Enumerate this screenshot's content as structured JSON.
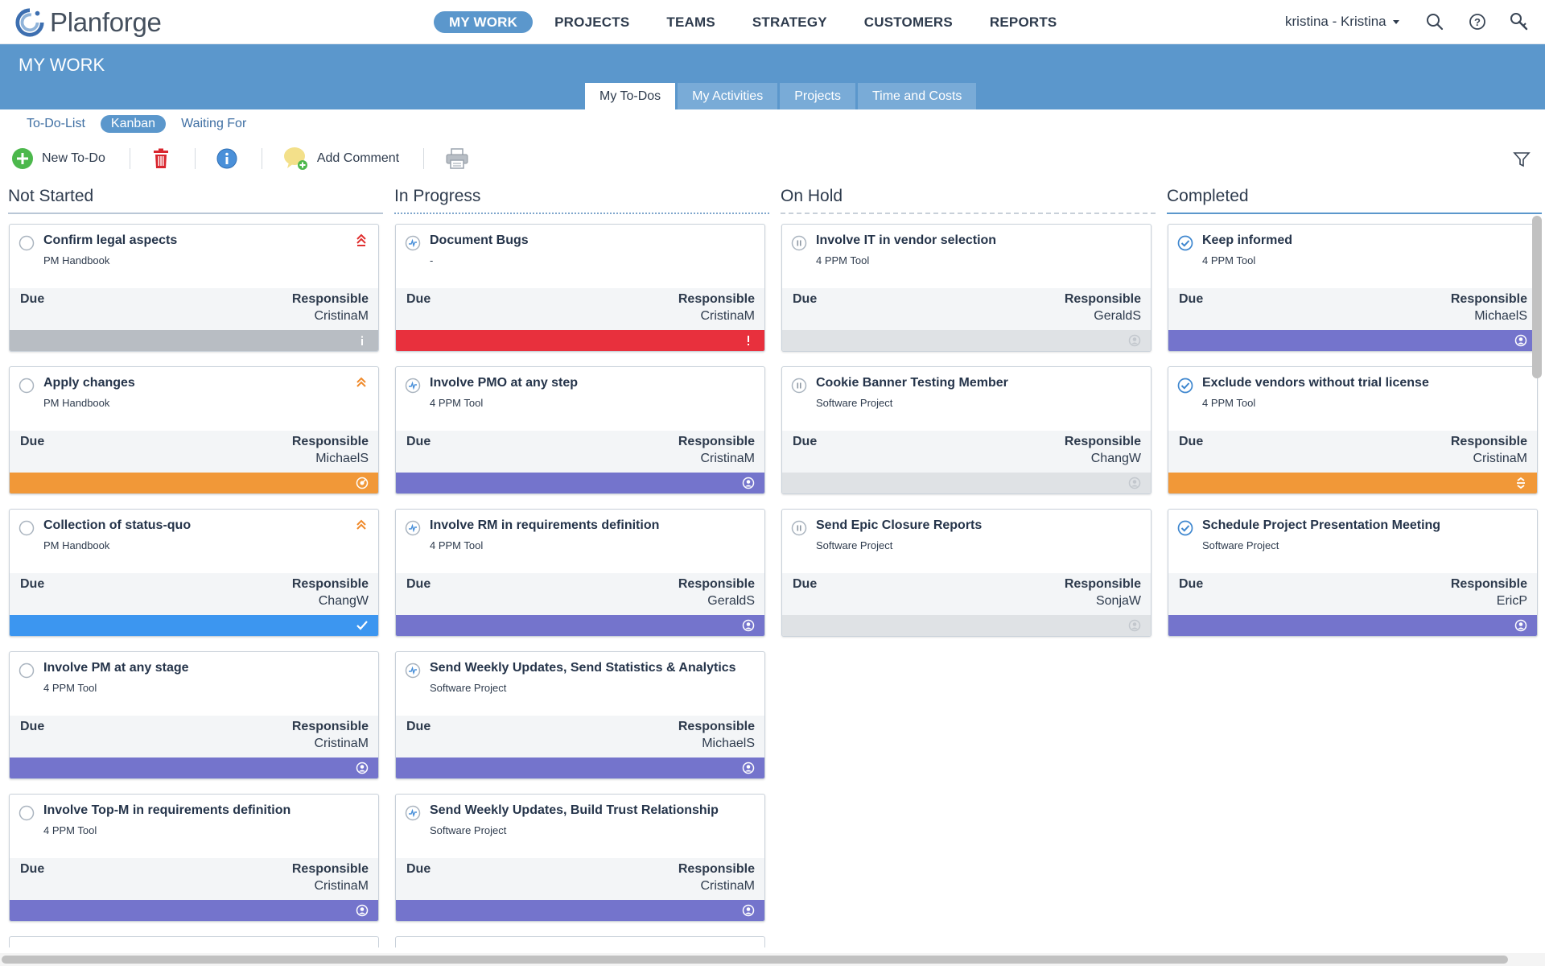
{
  "app": {
    "logo_text": "Planforge"
  },
  "nav": {
    "items": [
      {
        "label": "MY WORK",
        "active": true
      },
      {
        "label": "PROJECTS",
        "active": false
      },
      {
        "label": "TEAMS",
        "active": false
      },
      {
        "label": "STRATEGY",
        "active": false
      },
      {
        "label": "CUSTOMERS",
        "active": false
      },
      {
        "label": "REPORTS",
        "active": false
      }
    ],
    "user": "kristina - Kristina"
  },
  "page": {
    "title": "MY WORK"
  },
  "tabs": [
    {
      "label": "My To-Dos",
      "active": true
    },
    {
      "label": "My Activities",
      "active": false
    },
    {
      "label": "Projects",
      "active": false
    },
    {
      "label": "Time and Costs",
      "active": false
    }
  ],
  "subnav": [
    {
      "label": "To-Do-List",
      "active": false
    },
    {
      "label": "Kanban",
      "active": true
    },
    {
      "label": "Waiting For",
      "active": false
    }
  ],
  "toolbar": {
    "new_todo": "New To-Do",
    "add_comment": "Add Comment"
  },
  "card_labels": {
    "due": "Due",
    "responsible": "Responsible"
  },
  "colors": {
    "accent": "#5b97cc",
    "bar_grey": "#b8bdc3",
    "bar_light": "#dfe2e5",
    "bar_red": "#e8303d",
    "bar_orange": "#f19838",
    "bar_blue": "#3c96f0",
    "bar_purple": "#7474cc"
  },
  "columns": [
    {
      "title": "Not Started",
      "line": "solid-grey",
      "status_icon": "circle-empty-icon",
      "cards": [
        {
          "title": "Confirm legal aspects",
          "project": "PM Handbook",
          "responsible": "CristinaM",
          "priority": "priority-very-high-icon",
          "bar": "bar_grey",
          "bar_icon": "info-icon"
        },
        {
          "title": "Apply changes",
          "project": "PM Handbook",
          "responsible": "MichaelS",
          "priority": "priority-high-icon",
          "bar": "bar_orange",
          "bar_icon": "target-icon"
        },
        {
          "title": "Collection of status-quo",
          "project": "PM Handbook",
          "responsible": "ChangW",
          "priority": "priority-high-icon",
          "bar": "bar_blue",
          "bar_icon": "check-icon"
        },
        {
          "title": "Involve PM at any stage",
          "project": "4 PPM Tool",
          "responsible": "CristinaM",
          "priority": "",
          "bar": "bar_purple",
          "bar_icon": "user-icon"
        },
        {
          "title": "Involve Top-M in requirements definition",
          "project": "4 PPM Tool",
          "responsible": "CristinaM",
          "priority": "",
          "bar": "bar_purple",
          "bar_icon": "user-icon"
        }
      ]
    },
    {
      "title": "In Progress",
      "line": "dotted",
      "status_icon": "in-progress-icon",
      "cards": [
        {
          "title": "Document Bugs",
          "project": "-",
          "responsible": "CristinaM",
          "priority": "",
          "bar": "bar_red",
          "bar_icon": "exclamation-icon"
        },
        {
          "title": "Involve PMO at any step",
          "project": "4 PPM Tool",
          "responsible": "CristinaM",
          "priority": "",
          "bar": "bar_purple",
          "bar_icon": "user-icon"
        },
        {
          "title": "Involve RM in requirements definition",
          "project": "4 PPM Tool",
          "responsible": "GeraldS",
          "priority": "",
          "bar": "bar_purple",
          "bar_icon": "user-icon"
        },
        {
          "title": "Send Weekly Updates, Send Statistics & Analytics",
          "project": "Software Project",
          "responsible": "MichaelS",
          "priority": "",
          "bar": "bar_purple",
          "bar_icon": "user-icon"
        },
        {
          "title": "Send Weekly Updates, Build Trust Relationship",
          "project": "Software Project",
          "responsible": "CristinaM",
          "priority": "",
          "bar": "bar_purple",
          "bar_icon": "user-icon"
        }
      ]
    },
    {
      "title": "On Hold",
      "line": "dashed",
      "status_icon": "pause-icon",
      "cards": [
        {
          "title": "Involve IT in vendor selection",
          "project": "4 PPM Tool",
          "responsible": "GeraldS",
          "priority": "",
          "bar": "bar_light",
          "bar_icon": "user-icon"
        },
        {
          "title": "Cookie Banner Testing Member",
          "project": "Software Project",
          "responsible": "ChangW",
          "priority": "",
          "bar": "bar_light",
          "bar_icon": "user-icon"
        },
        {
          "title": "Send Epic Closure Reports",
          "project": "Software Project",
          "responsible": "SonjaW",
          "priority": "",
          "bar": "bar_light",
          "bar_icon": "user-icon"
        }
      ]
    },
    {
      "title": "Completed",
      "line": "solid-blue",
      "status_icon": "check-circle-icon",
      "cards": [
        {
          "title": "Keep informed",
          "project": "4 PPM Tool",
          "responsible": "MichaelS",
          "priority": "",
          "bar": "bar_purple",
          "bar_icon": "user-icon"
        },
        {
          "title": "Exclude vendors without trial license",
          "project": "4 PPM Tool",
          "responsible": "CristinaM",
          "priority": "",
          "bar": "bar_orange",
          "bar_icon": "arrows-icon"
        },
        {
          "title": "Schedule Project Presentation Meeting",
          "project": "Software Project",
          "responsible": "EricP",
          "priority": "",
          "bar": "bar_purple",
          "bar_icon": "user-icon"
        }
      ]
    }
  ]
}
